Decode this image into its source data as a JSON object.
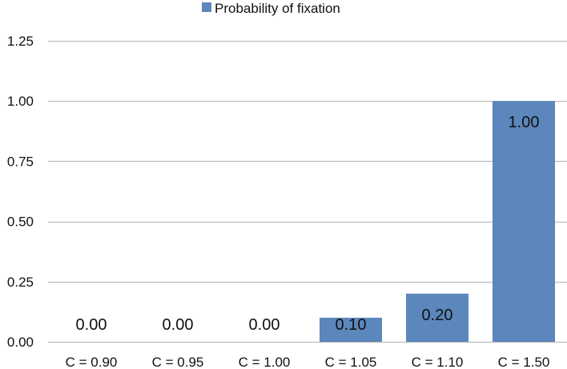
{
  "chart_data": {
    "type": "bar",
    "categories": [
      "C = 0.90",
      "C = 0.95",
      "C = 1.00",
      "C = 1.05",
      "C = 1.10",
      "C = 1.50"
    ],
    "series": [
      {
        "name": "Probability of fixation",
        "values": [
          0.0,
          0.0,
          0.0,
          0.1,
          0.2,
          1.0
        ],
        "data_labels": [
          "0.00",
          "0.00",
          "0.00",
          "0.10",
          "0.20",
          "1.00"
        ],
        "color": "#5b87bc"
      }
    ],
    "y_ticks": [
      0,
      0.25,
      0.5,
      0.75,
      1.0,
      1.25
    ],
    "y_tick_labels": [
      "0.00",
      "0.25",
      "0.50",
      "0.75",
      "1.00",
      "1.25"
    ],
    "ylim": [
      0,
      1.25
    ],
    "grid": true,
    "grid_color": "#b3b3b3",
    "legend_position": "top-center",
    "title": "",
    "xlabel": "",
    "ylabel": ""
  }
}
